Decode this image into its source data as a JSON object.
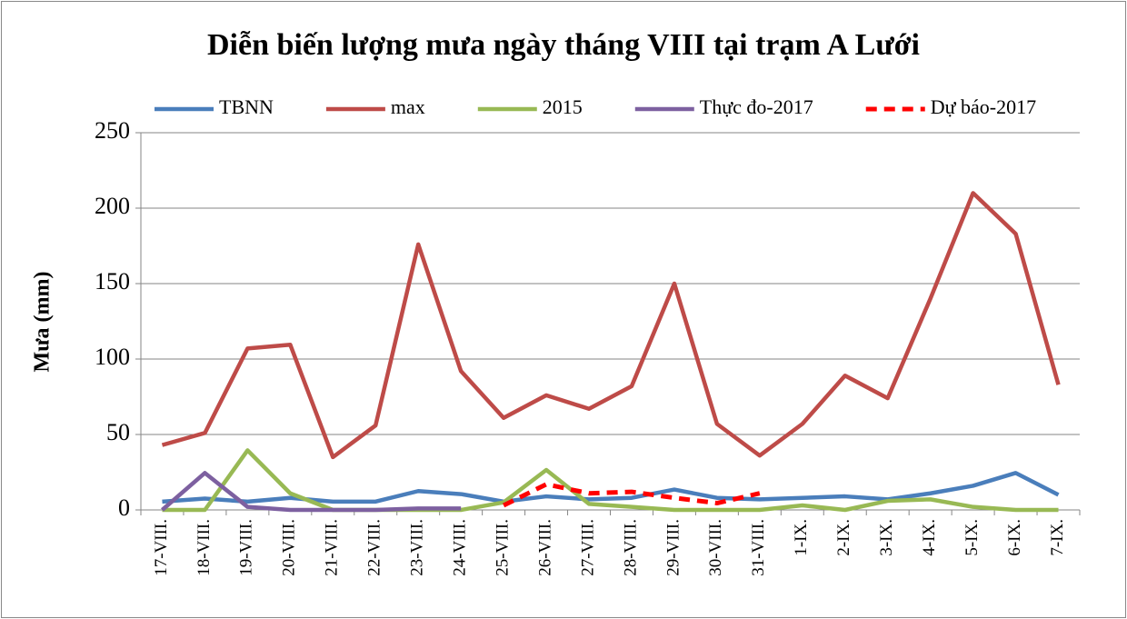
{
  "chart_data": {
    "type": "line",
    "title": "Diễn biến lượng mưa ngày tháng VIII tại trạm A Lưới",
    "y_label": "Mưa (mm)",
    "categories": [
      "17-VIII.",
      "18-VIII.",
      "19-VIII.",
      "20-VIII.",
      "21-VIII.",
      "22-VIII.",
      "23-VIII.",
      "24-VIII.",
      "25-VIII.",
      "26-VIII.",
      "27-VIII.",
      "28-VIII.",
      "29-VIII.",
      "30-VIII.",
      "31-VIII.",
      "1-IX.",
      "2-IX.",
      "3-IX.",
      "4-IX.",
      "5-IX.",
      "6-IX.",
      "7-IX."
    ],
    "series": [
      {
        "name": "TBNN",
        "color": "#4a7ebb",
        "values": [
          5.5,
          7.5,
          5.5,
          8,
          5.5,
          5.5,
          12.5,
          10.5,
          5.5,
          9,
          7,
          8,
          13.5,
          8,
          7,
          8,
          9,
          7,
          11,
          16,
          24.5,
          10
        ]
      },
      {
        "name": "max",
        "color": "#be4b48",
        "values": [
          43,
          51,
          107,
          109.5,
          35,
          56,
          176,
          92,
          61,
          76,
          67,
          82,
          150,
          57,
          36,
          57,
          89,
          74,
          140,
          210,
          183,
          83
        ]
      },
      {
        "name": "2015",
        "color": "#98b954",
        "values": [
          0,
          0,
          39.5,
          11,
          0,
          0,
          0,
          0,
          5,
          26.5,
          4,
          2,
          0,
          0,
          0,
          3,
          0,
          6,
          7,
          2,
          0,
          0
        ]
      },
      {
        "name": "Thực đo-2017",
        "color": "#7d60a0",
        "values": [
          0,
          24.5,
          2,
          0,
          0,
          0,
          1,
          1,
          null,
          null,
          null,
          null,
          null,
          null,
          null,
          null,
          null,
          null,
          null,
          null,
          null,
          null
        ]
      },
      {
        "name": "Dự báo-2017",
        "color": "#ff0000",
        "dashed": true,
        "values": [
          null,
          null,
          null,
          null,
          null,
          null,
          null,
          null,
          3,
          17,
          11,
          12,
          8,
          4.5,
          11,
          null,
          null,
          null,
          null,
          null,
          null,
          null
        ]
      }
    ],
    "ylim": [
      0,
      250
    ],
    "yticks": [
      0,
      50,
      100,
      150,
      200,
      250
    ],
    "grid": true
  }
}
